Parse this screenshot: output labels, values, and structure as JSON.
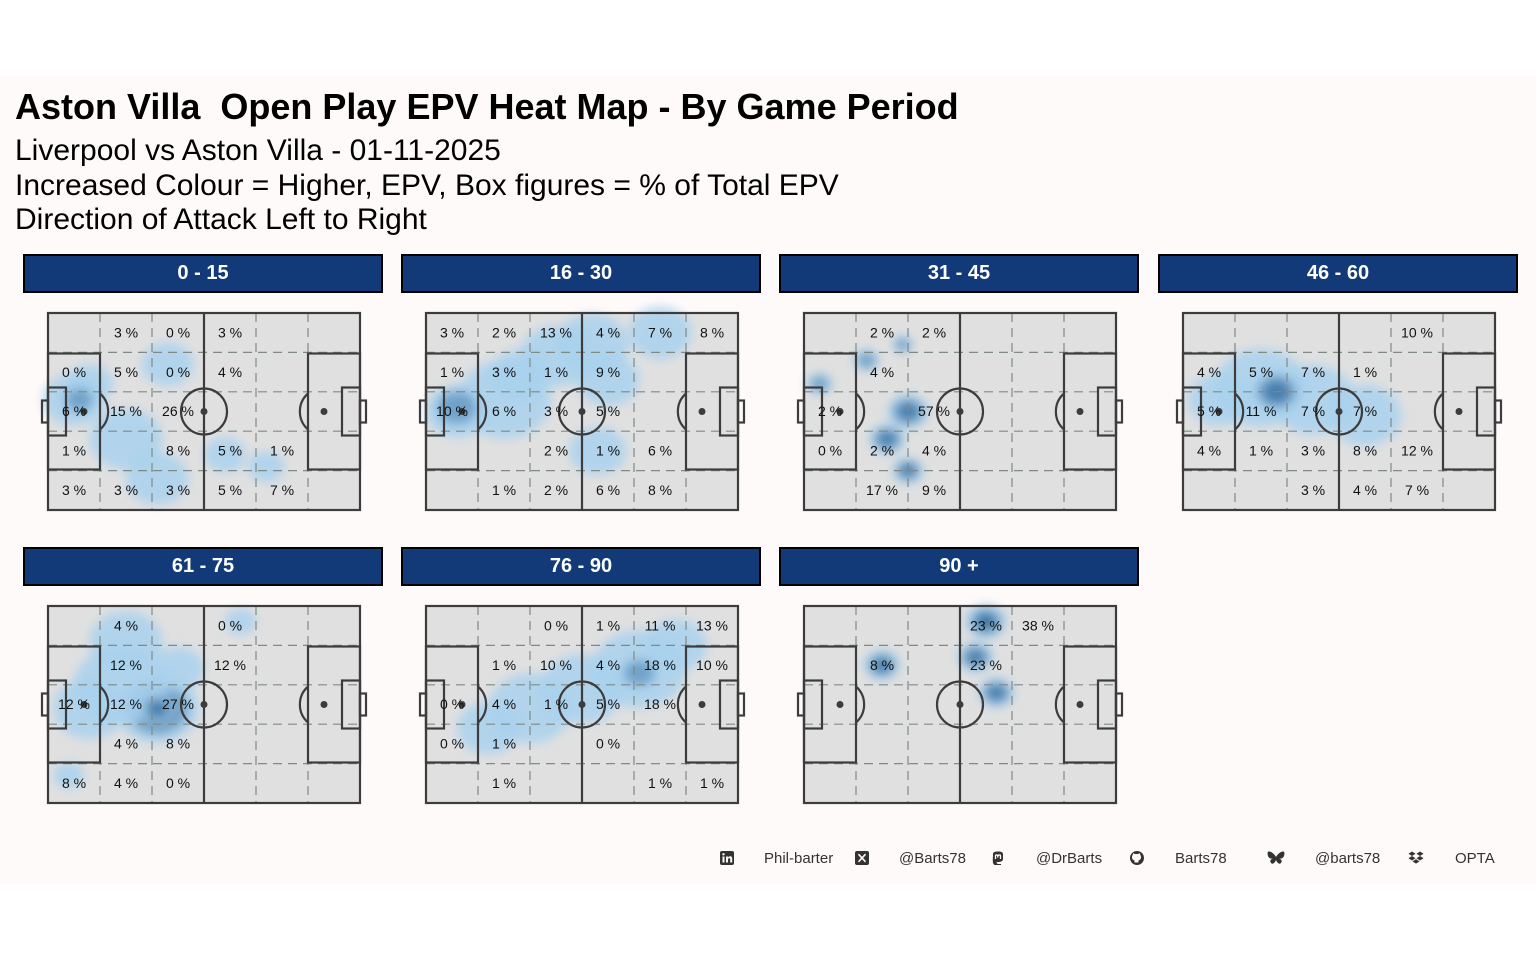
{
  "title": "Aston Villa  Open Play EPV Heat Map - By Game Period",
  "subtitle_lines": [
    "Liverpool vs Aston Villa - 01-11-2025",
    "Increased Colour = Higher, EPV, Box figures = % of Total EPV",
    "Direction of Attack Left to Right"
  ],
  "colors": {
    "strip": "#123a79",
    "pitch": "#e0e0e0",
    "line": "#3c3c3c",
    "heat_light": "#a9d1ee",
    "heat_dark": "#1f5d94"
  },
  "chart_data": {
    "type": "heatmap",
    "grid": {
      "columns": 6,
      "rows": 5
    },
    "panels": [
      {
        "label": "0 - 15",
        "cells": [
          [
            "",
            "3 %",
            "0 %",
            "3 %",
            "",
            ""
          ],
          [
            "0 %",
            "5 %",
            "0 %",
            "4 %",
            "",
            ""
          ],
          [
            "6 %",
            "15 %",
            "26 %",
            "",
            "",
            ""
          ],
          [
            "1 %",
            "",
            "8 %",
            "5 %",
            "1 %",
            ""
          ],
          [
            "3 %",
            "3 %",
            "3 %",
            "5 %",
            "7 %",
            ""
          ]
        ],
        "heat": [
          [
            0.5,
            2.2,
            0.6
          ],
          [
            1.5,
            3.2,
            0.7
          ],
          [
            0.8,
            1.8,
            0.45
          ],
          [
            2.3,
            1.3,
            0.5
          ],
          [
            2.1,
            4.2,
            0.6
          ],
          [
            3.4,
            3.6,
            0.4
          ],
          [
            4.2,
            3.9,
            0.35
          ],
          [
            0.6,
            2.2,
            0.35,
            2
          ]
        ]
      },
      {
        "label": "16 - 30",
        "cells": [
          [
            "3 %",
            "2 %",
            "13 %",
            "4 %",
            "7 %",
            "8 %"
          ],
          [
            "1 %",
            "3 %",
            "1 %",
            "9 %",
            "",
            ""
          ],
          [
            "10 %",
            "6 %",
            "3 %",
            "5 %",
            "",
            ""
          ],
          [
            "",
            "",
            "2 %",
            "1 %",
            "6 %",
            ""
          ],
          [
            "",
            "1 %",
            "2 %",
            "6 %",
            "8 %",
            ""
          ]
        ],
        "heat": [
          [
            1.5,
            2.2,
            0.9
          ],
          [
            0.6,
            2.5,
            0.6
          ],
          [
            2.5,
            1.1,
            0.7
          ],
          [
            3.2,
            0.8,
            0.7
          ],
          [
            4.5,
            0.5,
            0.6
          ],
          [
            3.5,
            1.7,
            0.6
          ],
          [
            1.8,
            1.6,
            0.6
          ],
          [
            3.3,
            3.5,
            0.55
          ],
          [
            0.6,
            2.4,
            0.5,
            2
          ]
        ]
      },
      {
        "label": "31 - 45",
        "cells": [
          [
            "",
            "2 %",
            "2 %",
            "",
            "",
            ""
          ],
          [
            "",
            "4 %",
            "",
            "",
            "",
            ""
          ],
          [
            "2 %",
            "",
            "57 %",
            "",
            "",
            ""
          ],
          [
            "0 %",
            "2 %",
            "4 %",
            "",
            "",
            ""
          ],
          [
            "",
            "17 %",
            "9 %",
            "",
            "",
            ""
          ]
        ],
        "heat": [
          [
            2.0,
            2.5,
            0.4,
            3
          ],
          [
            2.0,
            4.0,
            0.3,
            3
          ],
          [
            1.2,
            1.2,
            0.25,
            2
          ],
          [
            0.3,
            1.8,
            0.25,
            2
          ],
          [
            1.6,
            3.2,
            0.35,
            3
          ],
          [
            1.9,
            0.8,
            0.2,
            2
          ]
        ]
      },
      {
        "label": "46 - 60",
        "cells": [
          [
            "",
            "",
            "",
            "",
            "10 %",
            ""
          ],
          [
            "4 %",
            "5 %",
            "7 %",
            "1 %",
            "",
            ""
          ],
          [
            "5 %",
            "11 %",
            "7 %",
            "7 %",
            "",
            ""
          ],
          [
            "4 %",
            "1 %",
            "3 %",
            "8 %",
            "12 %",
            ""
          ],
          [
            "",
            "",
            "3 %",
            "4 %",
            "7 %",
            ""
          ]
        ],
        "heat": [
          [
            1.5,
            1.9,
            0.9
          ],
          [
            2.5,
            2.2,
            0.8
          ],
          [
            3.5,
            2.6,
            0.7
          ],
          [
            0.7,
            2.2,
            0.6
          ],
          [
            1.8,
            2.0,
            0.5,
            3
          ]
        ]
      },
      {
        "label": "61 - 75",
        "cells": [
          [
            "",
            "4 %",
            "",
            "0 %",
            "",
            ""
          ],
          [
            "",
            "12 %",
            "",
            "12 %",
            "",
            ""
          ],
          [
            "12 %",
            "12 %",
            "27 %",
            "",
            "",
            ""
          ],
          [
            "",
            "4 %",
            "8 %",
            "",
            "",
            ""
          ],
          [
            "8 %",
            "4 %",
            "0 %",
            "",
            "",
            ""
          ]
        ],
        "heat": [
          [
            2.1,
            2.6,
            0.8,
            3
          ],
          [
            1.4,
            2.0,
            0.9
          ],
          [
            0.8,
            2.6,
            0.7
          ],
          [
            1.5,
            0.9,
            0.7
          ],
          [
            2.5,
            1.6,
            0.5
          ],
          [
            3.7,
            0.4,
            0.3
          ],
          [
            0.4,
            4.3,
            0.3
          ],
          [
            2.1,
            2.6,
            0.35,
            3
          ]
        ]
      },
      {
        "label": "76 - 90",
        "cells": [
          [
            "",
            "",
            "0 %",
            "1 %",
            "11 %",
            "13 %"
          ],
          [
            "",
            "1 %",
            "10 %",
            "4 %",
            "18 %",
            "10 %"
          ],
          [
            "0 %",
            "4 %",
            "1 %",
            "5 %",
            "18 %",
            ""
          ],
          [
            "0 %",
            "1 %",
            "",
            "0 %",
            "",
            ""
          ],
          [
            "",
            "1 %",
            "",
            "",
            "1 %",
            "1 %"
          ]
        ],
        "heat": [
          [
            4.1,
            1.6,
            0.9
          ],
          [
            3.0,
            2.1,
            0.8
          ],
          [
            2.0,
            2.6,
            0.8
          ],
          [
            1.2,
            3.1,
            0.6
          ],
          [
            4.8,
            1.0,
            0.6
          ],
          [
            4.1,
            1.7,
            0.4,
            2
          ]
        ]
      },
      {
        "label": "90 +",
        "cells": [
          [
            "",
            "",
            "",
            "23 %",
            "38 %",
            ""
          ],
          [
            "",
            "8 %",
            "",
            "23 %",
            "",
            ""
          ],
          [
            "",
            "",
            "",
            "",
            "",
            ""
          ],
          [
            "",
            "",
            "",
            "",
            "",
            ""
          ],
          [
            "",
            "",
            "",
            "",
            "",
            ""
          ]
        ],
        "heat": [
          [
            3.5,
            0.4,
            0.4,
            4
          ],
          [
            3.3,
            1.3,
            0.35,
            3
          ],
          [
            3.7,
            2.2,
            0.35,
            3
          ],
          [
            1.5,
            1.5,
            0.35,
            3
          ]
        ]
      }
    ]
  },
  "footer": [
    {
      "icon": "linkedin-icon",
      "text": "Phil-barter"
    },
    {
      "icon": "x-twitter-icon",
      "text": "@Barts78"
    },
    {
      "icon": "mastodon-icon",
      "text": "@DrBarts"
    },
    {
      "icon": "github-icon",
      "text": "Barts78"
    },
    {
      "icon": "bluesky-icon",
      "text": "@barts78"
    },
    {
      "icon": "dropbox-icon",
      "text": "OPTA"
    }
  ]
}
